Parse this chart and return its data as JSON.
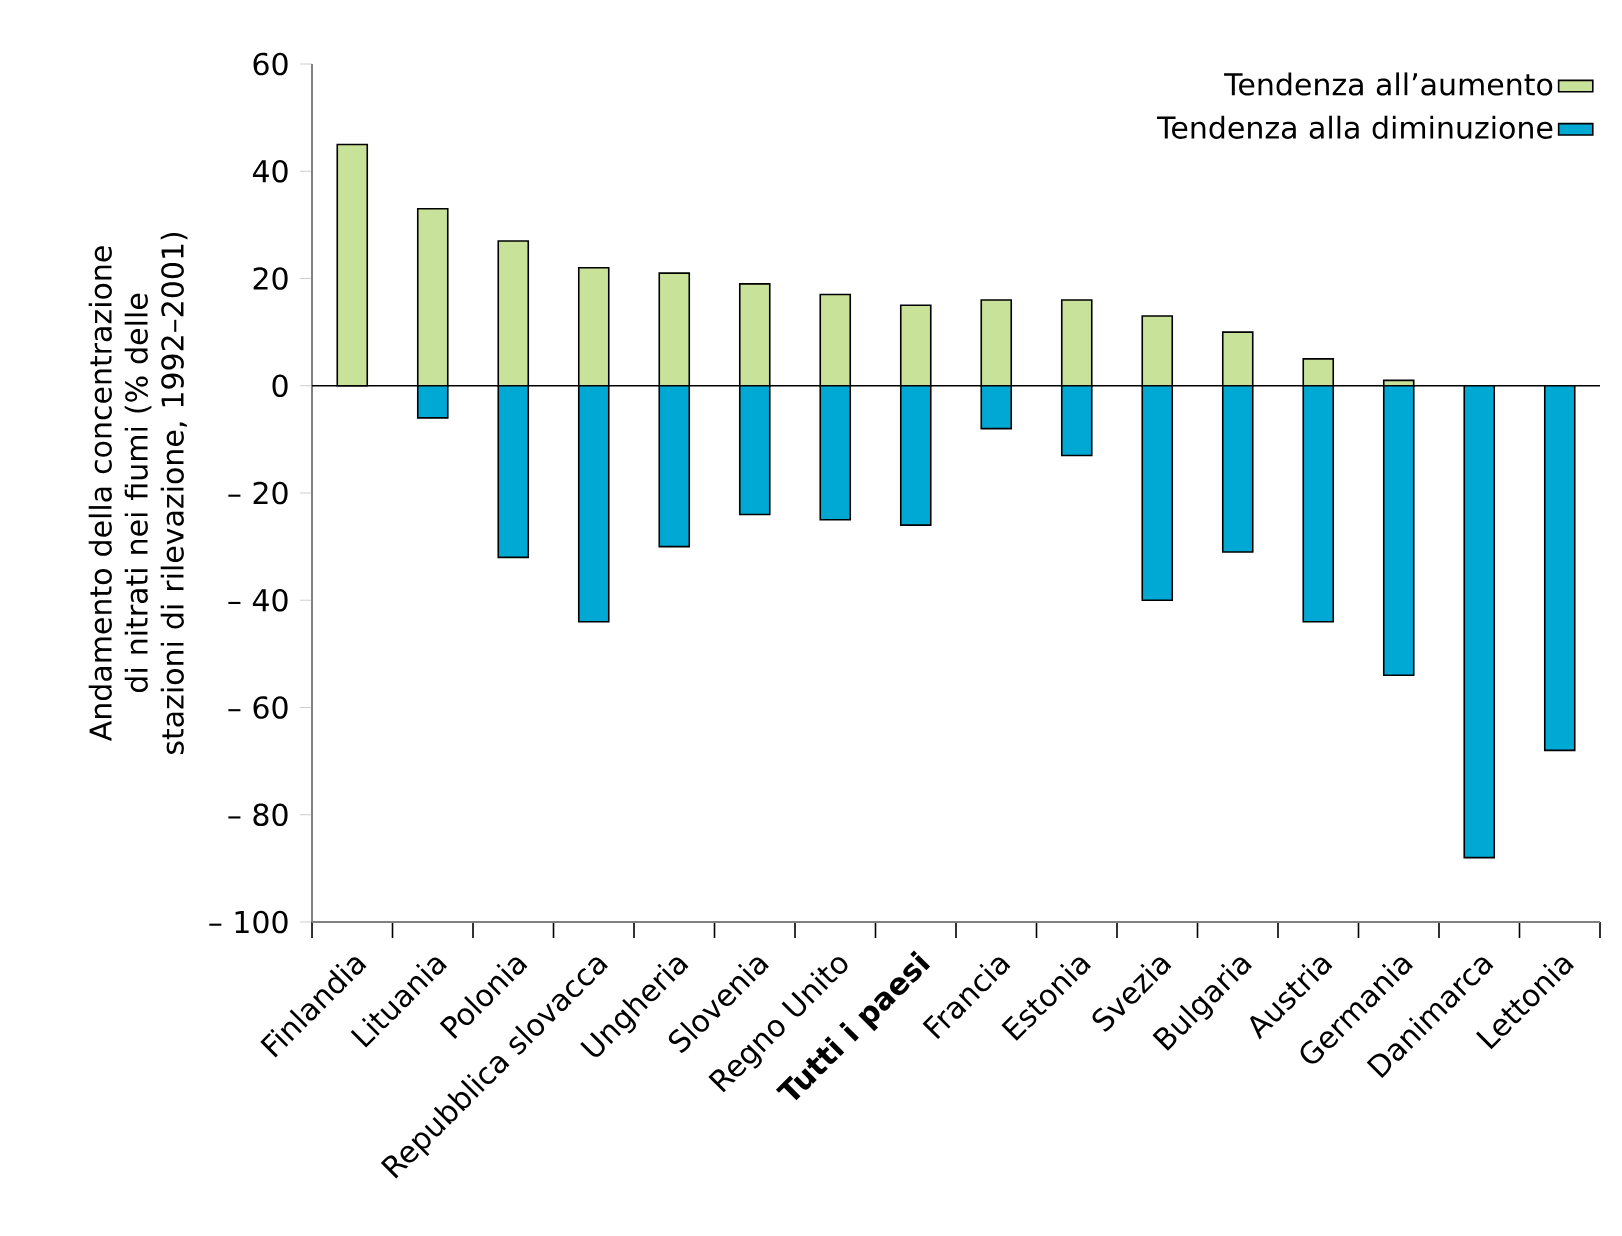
{
  "chart_data": {
    "type": "bar",
    "ylabel": "Andamento della concentrazione di nitrati nei fiumi (% delle stazioni di rilevazione, 1992–2001)",
    "categories": [
      "Finlandia",
      "Lituania",
      "Polonia",
      "Repubblica slovacca",
      "Ungheria",
      "Slovenia",
      "Regno Unito",
      "**Tutti i paesi**",
      "Francia",
      "Estonia",
      "Svezia",
      "Bulgaria",
      "Austria",
      "Germania",
      "Danimarca",
      "Lettonia"
    ],
    "series": [
      {
        "name": "Tendenza all’aumento",
        "color": "#c9e29a",
        "values": [
          45,
          33,
          27,
          22,
          21,
          19,
          17,
          15,
          16,
          16,
          13,
          10,
          5,
          1,
          null,
          null
        ]
      },
      {
        "name": "Tendenza alla diminuzione",
        "color": "#00a8d4",
        "values": [
          null,
          -6,
          -32,
          -44,
          -30,
          -24,
          -25,
          -26,
          -8,
          -13,
          -40,
          -31,
          -44,
          -54,
          -88,
          -68
        ]
      }
    ],
    "ylim": [
      -100,
      60
    ],
    "yticks": [
      {
        "value": -100,
        "label": "– 100"
      },
      {
        "value": -80,
        "label": "– 80"
      },
      {
        "value": -60,
        "label": "– 60"
      },
      {
        "value": -40,
        "label": "– 40"
      },
      {
        "value": -20,
        "label": "– 20"
      },
      0,
      20,
      40,
      60
    ],
    "stacked": true,
    "legend": "top right"
  }
}
